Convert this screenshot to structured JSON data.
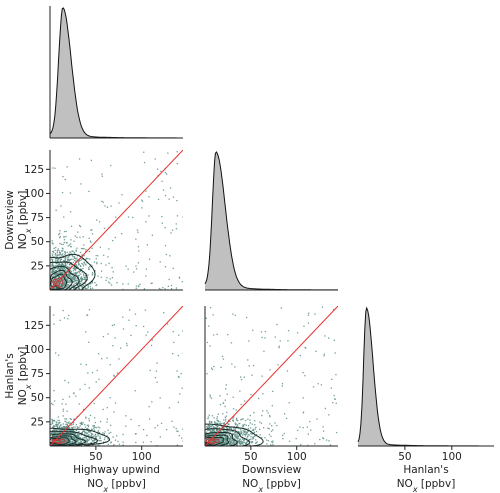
{
  "chart_data": {
    "type": "pairplot",
    "variables": [
      {
        "key": "highway",
        "name": "Highway upwind",
        "unit_line": "NOx [ppbv]"
      },
      {
        "key": "downsview",
        "name": "Downsview",
        "unit_line": "NOx [ppbv]"
      },
      {
        "key": "hanlans",
        "name": "Hanlan's",
        "unit_line": "NOx [ppbv]"
      }
    ],
    "xlim": [
      0,
      145
    ],
    "ylim": [
      0,
      145
    ],
    "x_ticks": [
      50,
      100
    ],
    "y_ticks": [
      25,
      50,
      75,
      100,
      125
    ],
    "colors": {
      "scatter": "#5d8f86",
      "kde_fill": "#c0c0c0",
      "kde_line": "#111111",
      "contour": "#1a2a28",
      "one_to_one": "#e8302c",
      "axis": "#222222"
    },
    "diagonal_kde": [
      {
        "variable": "highway",
        "peak_x": 14,
        "spread_left": 4.5,
        "spread_right": 9,
        "tail": 0.025
      },
      {
        "variable": "downsview",
        "peak_x": 12,
        "spread_left": 4,
        "spread_right": 10,
        "tail": 0.035
      },
      {
        "variable": "hanlans",
        "peak_x": 9,
        "spread_left": 3,
        "spread_right": 7,
        "tail": 0.02
      }
    ],
    "scatter_panels": [
      {
        "x": "highway",
        "y": "downsview",
        "core_center": [
          12,
          12
        ],
        "contour_extent": [
          [
            0,
            60
          ],
          [
            0,
            55
          ]
        ],
        "one_to_one_line": true
      },
      {
        "x": "highway",
        "y": "hanlans",
        "core_center": [
          12,
          8
        ],
        "contour_extent": [
          [
            0,
            80
          ],
          [
            0,
            25
          ]
        ],
        "one_to_one_line": true
      },
      {
        "x": "downsview",
        "y": "hanlans",
        "core_center": [
          10,
          8
        ],
        "contour_extent": [
          [
            0,
            80
          ],
          [
            0,
            30
          ]
        ],
        "one_to_one_line": true
      }
    ]
  }
}
